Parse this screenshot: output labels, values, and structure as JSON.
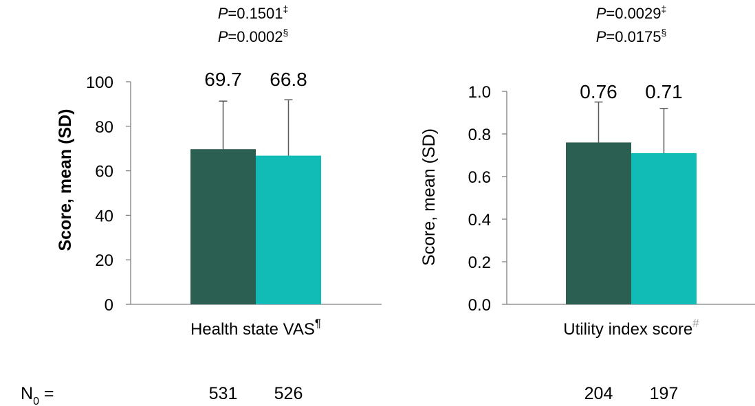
{
  "colors": {
    "series_dark": "#2b5f51",
    "series_teal": "#11bcb6",
    "axis": "#808080",
    "error_bar": "#595959",
    "hash_mark": "#9e9e9e"
  },
  "n_label": {
    "prefix": "N",
    "subscript": "0",
    "suffix": " ="
  },
  "chart_data": [
    {
      "type": "bar",
      "categories": [
        "Health state VAS"
      ],
      "category_marker": "¶",
      "ylabel": "Score, mean (SD)",
      "ylabel_bold": true,
      "ylim": [
        0,
        100
      ],
      "yticks": [
        "0",
        "20",
        "40",
        "60",
        "80",
        "100"
      ],
      "ytick_values": [
        0,
        20,
        40,
        60,
        80,
        100
      ],
      "series": [
        {
          "values": [
            69.7
          ],
          "sd": [
            21.6
          ],
          "label": "69.7",
          "n": "531",
          "color": "#2b5f51"
        },
        {
          "values": [
            66.8
          ],
          "sd": [
            25.1
          ],
          "label": "66.8",
          "n": "526",
          "color": "#11bcb6"
        }
      ],
      "pvalues": [
        {
          "letter": "P",
          "value": "=0.1501",
          "mark": "‡"
        },
        {
          "letter": "P",
          "value": "=0.0002",
          "mark": "§"
        }
      ],
      "grid": false
    },
    {
      "type": "bar",
      "categories": [
        "Utility index score"
      ],
      "category_marker": "#",
      "ylabel": "Score, mean (SD)",
      "ylabel_bold": false,
      "ylim": [
        0,
        1.0
      ],
      "yticks": [
        "0.0",
        "0.2",
        "0.4",
        "0.6",
        "0.8",
        "1.0"
      ],
      "ytick_values": [
        0,
        0.2,
        0.4,
        0.6,
        0.8,
        1.0
      ],
      "series": [
        {
          "values": [
            0.76
          ],
          "sd": [
            0.19
          ],
          "label": "0.76",
          "n": "204",
          "color": "#2b5f51"
        },
        {
          "values": [
            0.71
          ],
          "sd": [
            0.21
          ],
          "label": "0.71",
          "n": "197",
          "color": "#11bcb6"
        }
      ],
      "pvalues": [
        {
          "letter": "P",
          "value": "=0.0029",
          "mark": "‡"
        },
        {
          "letter": "P",
          "value": "=0.0175",
          "mark": "§"
        }
      ],
      "grid": false
    }
  ]
}
